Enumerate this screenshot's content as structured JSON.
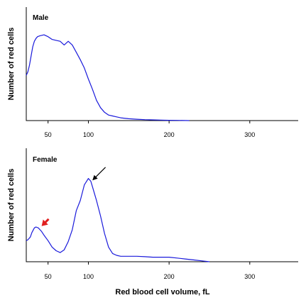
{
  "x_axis_title": "Red blood cell volume, fL",
  "chart_data": [
    {
      "type": "line",
      "title": "Male",
      "ylabel": "Number of red cells",
      "xlabel": "",
      "xlim": [
        23,
        360
      ],
      "ylim": [
        0,
        100
      ],
      "x_ticks": [
        50,
        100,
        200,
        300
      ],
      "grid": false,
      "series": [
        {
          "color": "#1a1adb",
          "x": [
            23,
            25,
            27,
            29,
            31,
            33,
            35,
            37,
            40,
            45,
            50,
            55,
            60,
            65,
            70,
            75,
            80,
            85,
            90,
            95,
            100,
            105,
            110,
            115,
            120,
            125,
            130,
            135,
            140,
            150,
            160,
            170,
            180,
            190,
            200,
            210,
            220,
            225
          ],
          "y": [
            49,
            53,
            60,
            70,
            80,
            86,
            89,
            91,
            92,
            93,
            91,
            88,
            87,
            86,
            82,
            86,
            82,
            74,
            66,
            57,
            45,
            34,
            22,
            14,
            9,
            6,
            5,
            4,
            3,
            2,
            1.5,
            1,
            0.8,
            0.5,
            0.3,
            0.2,
            0.1,
            0
          ]
        }
      ]
    },
    {
      "type": "line",
      "title": "Female",
      "ylabel": "Number of red cells",
      "xlabel": "Red blood cell volume, fL",
      "xlim": [
        23,
        360
      ],
      "ylim": [
        0,
        100
      ],
      "x_ticks": [
        50,
        100,
        200,
        300
      ],
      "grid": false,
      "series": [
        {
          "color": "#1a1adb",
          "x": [
            23,
            25,
            28,
            30,
            33,
            35,
            38,
            40,
            42,
            45,
            50,
            55,
            60,
            65,
            70,
            75,
            80,
            85,
            90,
            95,
            100,
            103,
            105,
            110,
            115,
            120,
            125,
            130,
            135,
            140,
            150,
            160,
            170,
            180,
            190,
            200,
            210,
            220,
            230,
            240,
            250
          ],
          "y": [
            23,
            24,
            27,
            32,
            37,
            38,
            37,
            35,
            33,
            29,
            23,
            16,
            12,
            10,
            13,
            22,
            35,
            56,
            67,
            84,
            91,
            88,
            82,
            67,
            50,
            31,
            16,
            9,
            7,
            6,
            6,
            6,
            5.5,
            5,
            5,
            5,
            4,
            3,
            2,
            1,
            0
          ]
        }
      ],
      "annotations": [
        {
          "type": "arrow",
          "color": "#e02020",
          "points_to_x": 42,
          "points_to_y": 39
        },
        {
          "type": "arrow",
          "color": "#000000",
          "points_to_x": 105,
          "points_to_y": 89
        }
      ]
    }
  ]
}
